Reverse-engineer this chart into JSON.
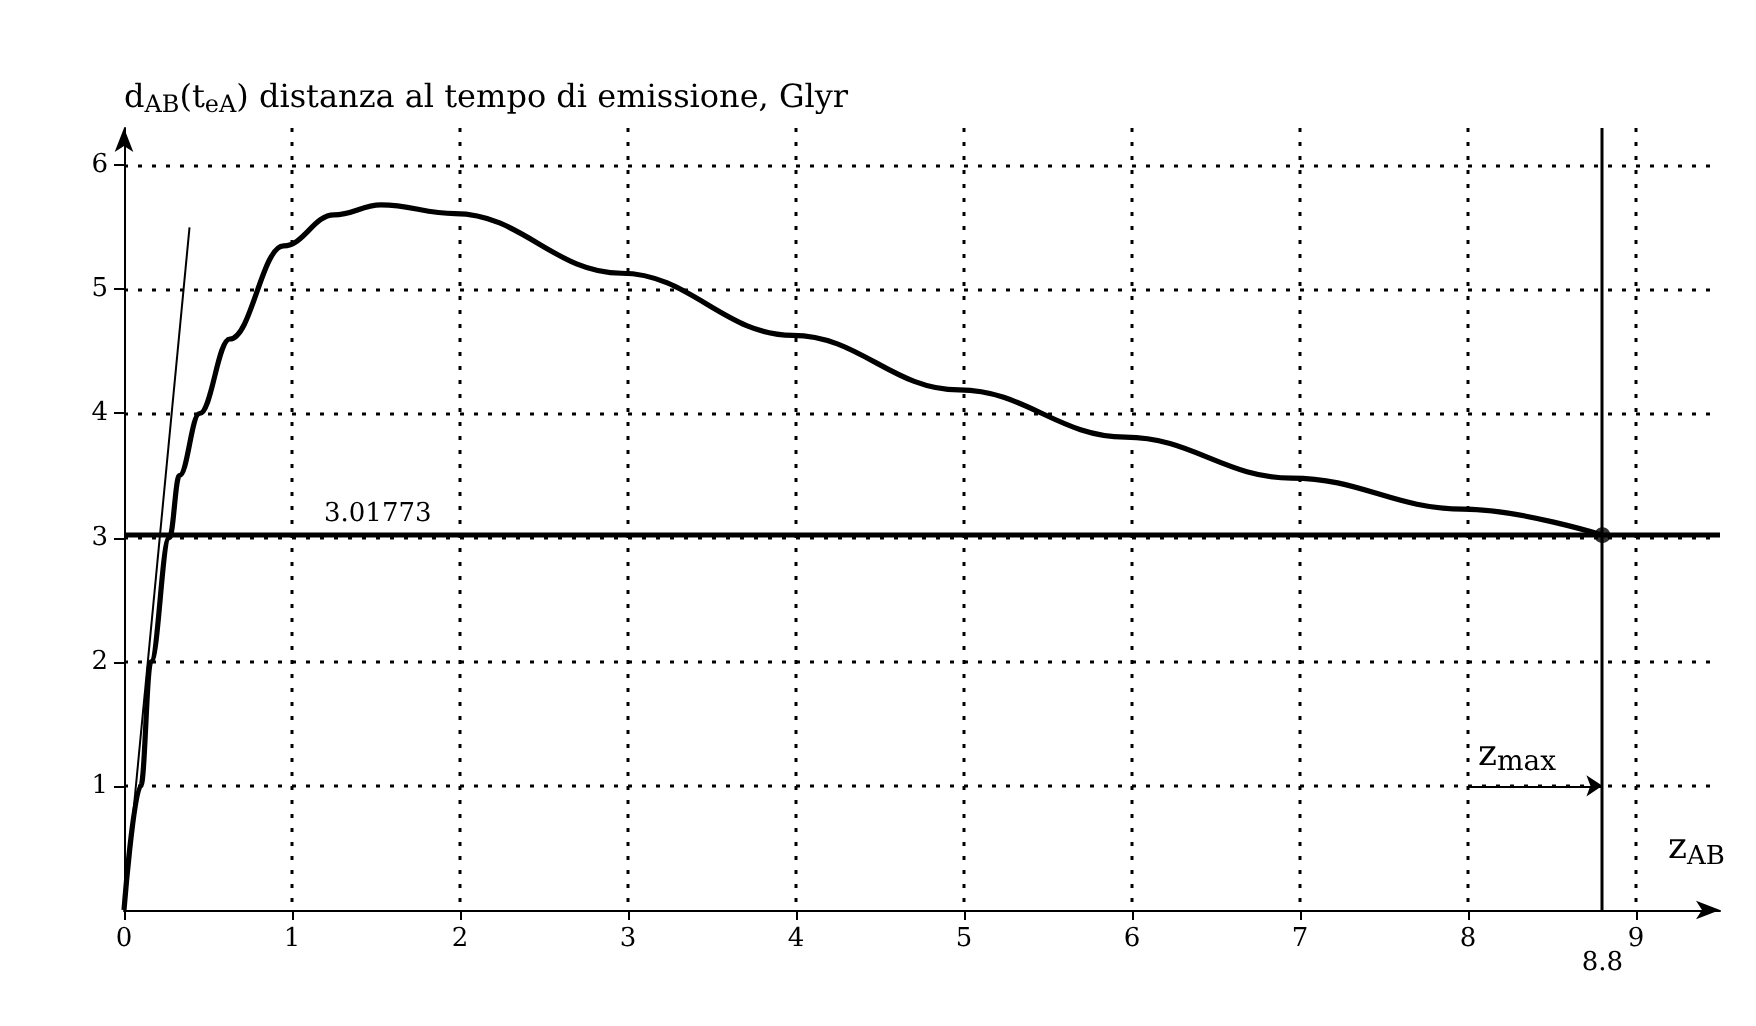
{
  "chart_data": {
    "type": "line",
    "ylabel": "d$_{AB}$(t$_{eA}$) distanza al tempo di emissione, Glyr",
    "xlabel": "z$_{AB}$",
    "series": [
      {
        "color": "#000000",
        "x": [
          0,
          0.1,
          0.16,
          0.27,
          0.33,
          0.45,
          0.63,
          0.95,
          1.25,
          1.53,
          1.97,
          2.96,
          3.98,
          4.97,
          5.96,
          6.95,
          7.97,
          8.8
        ],
        "values": [
          0,
          1.0,
          2.0,
          3.0,
          3.5,
          4.0,
          4.6,
          5.35,
          5.6,
          5.68,
          5.61,
          5.13,
          4.63,
          4.19,
          3.81,
          3.48,
          3.23,
          3.02
        ]
      },
      {
        "color": "#000000",
        "x": [
          0,
          0.39
        ],
        "values": [
          0,
          5.5
        ]
      },
      {
        "type": "scatter",
        "color": "#000000",
        "x": [
          8.8
        ],
        "values": [
          3.02
        ]
      }
    ],
    "xlim": [
      0,
      9.5
    ],
    "ylim": [
      0,
      6.3
    ],
    "xticks": [
      0,
      1,
      2,
      3,
      4,
      5,
      6,
      7,
      8,
      9
    ],
    "yticks": [
      1,
      2,
      3,
      4,
      5,
      6
    ],
    "grid": true,
    "line_style": "solid",
    "ref_lines": [
      {
        "axis": "y",
        "value": 3.01773,
        "label": "3.01773",
        "color": "#000000"
      },
      {
        "axis": "x",
        "value": 8.8,
        "label": "8.8",
        "color": "#000000"
      }
    ],
    "annotations": [
      {
        "text": "z$_{max}$",
        "x": 8.8,
        "y": 1.0
      }
    ]
  }
}
